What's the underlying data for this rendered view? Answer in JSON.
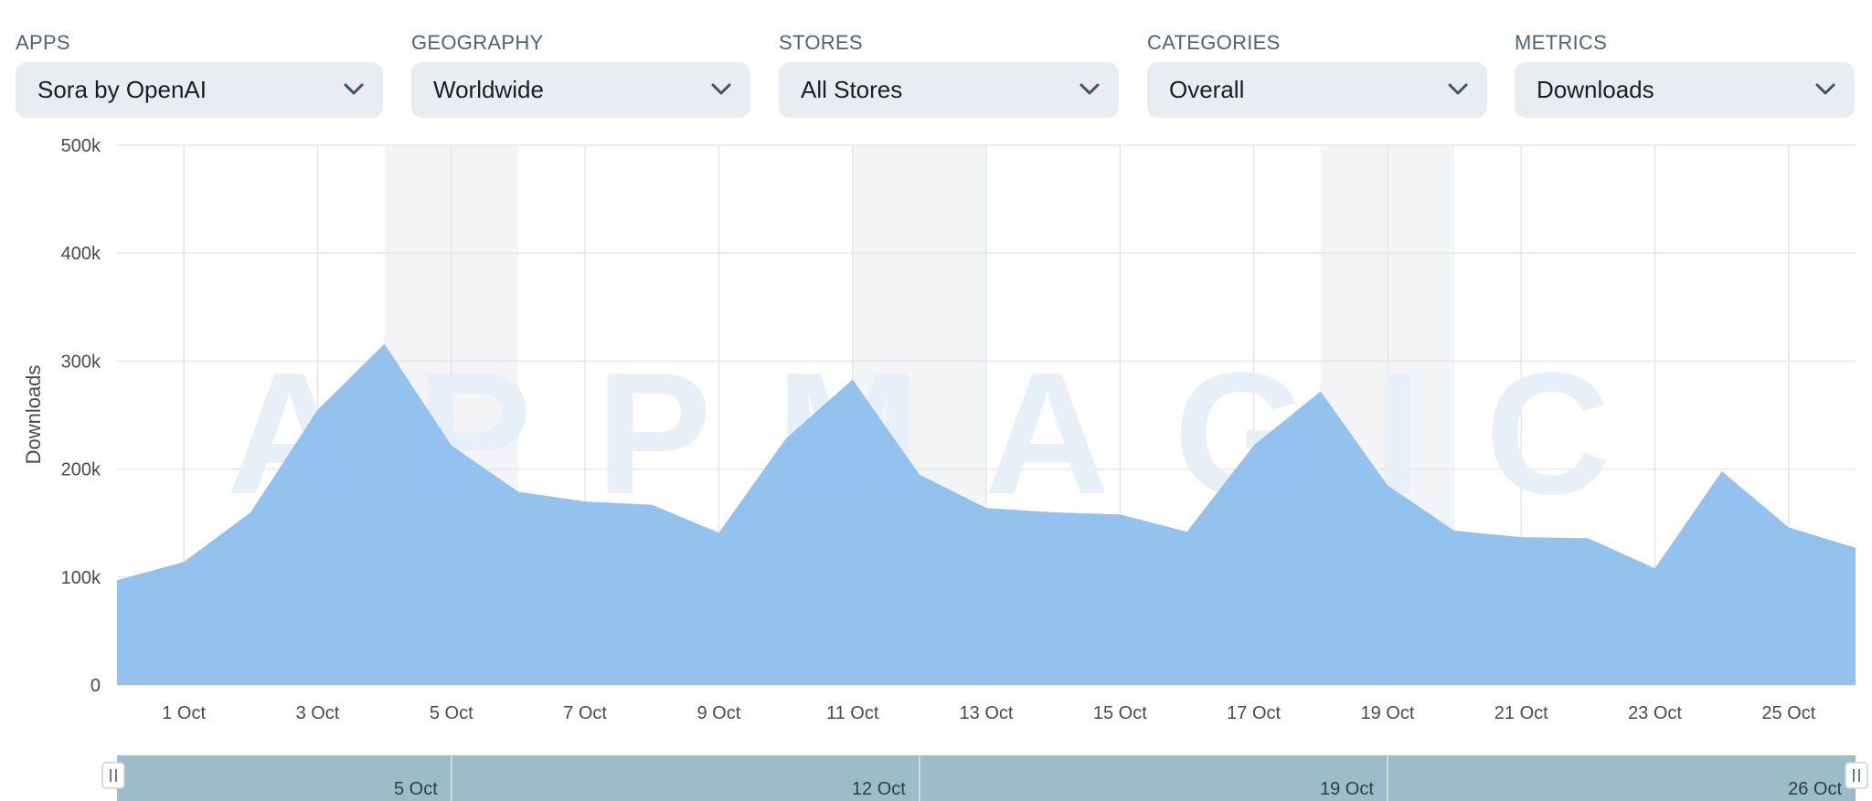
{
  "filters": [
    {
      "name": "apps",
      "label": "APPS",
      "value": "Sora by OpenAI"
    },
    {
      "name": "geography",
      "label": "GEOGRAPHY",
      "value": "Worldwide"
    },
    {
      "name": "stores",
      "label": "STORES",
      "value": "All Stores"
    },
    {
      "name": "categories",
      "label": "CATEGORIES",
      "value": "Overall"
    },
    {
      "name": "metrics",
      "label": "METRICS",
      "value": "Downloads"
    }
  ],
  "icons": {
    "dropdown": "chevron-down-icon",
    "handle": "drag-handle-icon"
  },
  "colors": {
    "area": "#8cbdee",
    "navigator": "#9dbcc9",
    "weekend_band": "#f3f4f5",
    "grid": "#e4e6e9"
  },
  "watermark": "APPMAGIC",
  "chart_data": {
    "type": "area",
    "title": "",
    "ylabel": "Downloads",
    "xlabel": "",
    "ylim": [
      0,
      500000
    ],
    "x_range": [
      "2025-09-30",
      "2025-10-26"
    ],
    "y_ticks": [
      {
        "value": 0,
        "label": "0"
      },
      {
        "value": 100000,
        "label": "100k"
      },
      {
        "value": 200000,
        "label": "200k"
      },
      {
        "value": 300000,
        "label": "300k"
      },
      {
        "value": 400000,
        "label": "400k"
      },
      {
        "value": 500000,
        "label": "500k"
      }
    ],
    "x_ticks": [
      {
        "date": "2025-10-01",
        "label": "1 Oct"
      },
      {
        "date": "2025-10-03",
        "label": "3 Oct"
      },
      {
        "date": "2025-10-05",
        "label": "5 Oct"
      },
      {
        "date": "2025-10-07",
        "label": "7 Oct"
      },
      {
        "date": "2025-10-09",
        "label": "9 Oct"
      },
      {
        "date": "2025-10-11",
        "label": "11 Oct"
      },
      {
        "date": "2025-10-13",
        "label": "13 Oct"
      },
      {
        "date": "2025-10-15",
        "label": "15 Oct"
      },
      {
        "date": "2025-10-17",
        "label": "17 Oct"
      },
      {
        "date": "2025-10-19",
        "label": "19 Oct"
      },
      {
        "date": "2025-10-21",
        "label": "21 Oct"
      },
      {
        "date": "2025-10-23",
        "label": "23 Oct"
      },
      {
        "date": "2025-10-25",
        "label": "25 Oct"
      }
    ],
    "weekend_bands": [
      [
        "2025-10-04",
        "2025-10-06"
      ],
      [
        "2025-10-11",
        "2025-10-13"
      ],
      [
        "2025-10-18",
        "2025-10-20"
      ]
    ],
    "grid": true,
    "legend": false,
    "series": [
      {
        "x": [
          "2025-09-30",
          "2025-10-01",
          "2025-10-02",
          "2025-10-03",
          "2025-10-04",
          "2025-10-05",
          "2025-10-06",
          "2025-10-07",
          "2025-10-08",
          "2025-10-09",
          "2025-10-10",
          "2025-10-11",
          "2025-10-12",
          "2025-10-13",
          "2025-10-14",
          "2025-10-15",
          "2025-10-16",
          "2025-10-17",
          "2025-10-18",
          "2025-10-19",
          "2025-10-20",
          "2025-10-21",
          "2025-10-22",
          "2025-10-23",
          "2025-10-24",
          "2025-10-25",
          "2025-10-26"
        ],
        "values": [
          97000,
          114000,
          160000,
          255000,
          316000,
          222000,
          179000,
          170000,
          167000,
          141000,
          228000,
          283000,
          195000,
          164000,
          160000,
          158000,
          142000,
          222000,
          272000,
          185000,
          143000,
          137000,
          136000,
          108000,
          198000,
          146000,
          127000
        ]
      }
    ],
    "navigator": {
      "labels": [
        {
          "date": "2025-10-05",
          "label": "5 Oct"
        },
        {
          "date": "2025-10-12",
          "label": "12 Oct"
        },
        {
          "date": "2025-10-19",
          "label": "19 Oct"
        },
        {
          "date": "2025-10-26",
          "label": "26 Oct"
        }
      ],
      "dividers": [
        "2025-10-05",
        "2025-10-12",
        "2025-10-19"
      ]
    }
  }
}
